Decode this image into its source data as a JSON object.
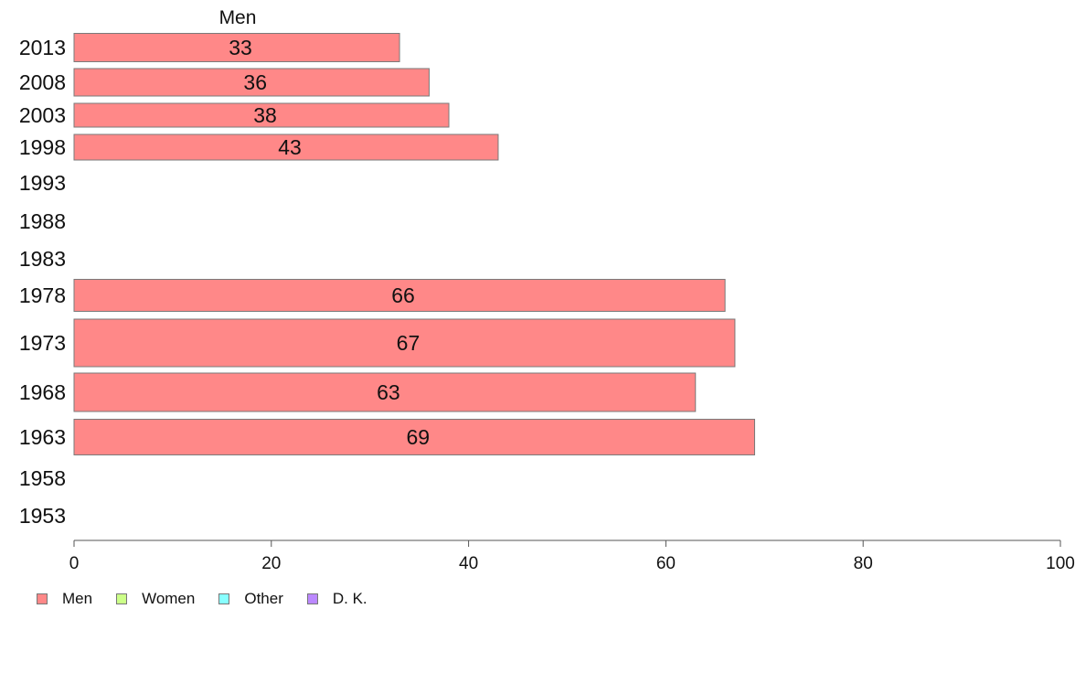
{
  "chart_data": {
    "type": "bar",
    "orientation": "horizontal",
    "title": "Men",
    "categories": [
      "2013",
      "2008",
      "2003",
      "1998",
      "1993",
      "1988",
      "1983",
      "1978",
      "1973",
      "1968",
      "1963",
      "1958",
      "1953"
    ],
    "series": [
      {
        "name": "Men",
        "values": [
          33,
          36,
          38,
          43,
          null,
          null,
          null,
          66,
          67,
          63,
          69,
          null,
          null
        ],
        "color": "#ff8888"
      }
    ],
    "data_labels": [
      "33",
      "36",
      "38",
      "43",
      "",
      "",
      "",
      "66",
      "67",
      "63",
      "69",
      "",
      ""
    ],
    "xlim": [
      0,
      100
    ],
    "xticks": [
      0,
      20,
      40,
      60,
      80,
      100
    ],
    "xtick_labels": [
      "0",
      "20",
      "40",
      "60",
      "80",
      "100"
    ],
    "xlabel": "",
    "ylabel": "",
    "grid": false,
    "legend": {
      "placement": "bottom-left",
      "items": [
        {
          "label": "Men",
          "color": "#ff8888"
        },
        {
          "label": "Women",
          "color": "#ccff88"
        },
        {
          "label": "Other",
          "color": "#88ffff"
        },
        {
          "label": "D. K.",
          "color": "#bb88ff"
        }
      ]
    }
  }
}
